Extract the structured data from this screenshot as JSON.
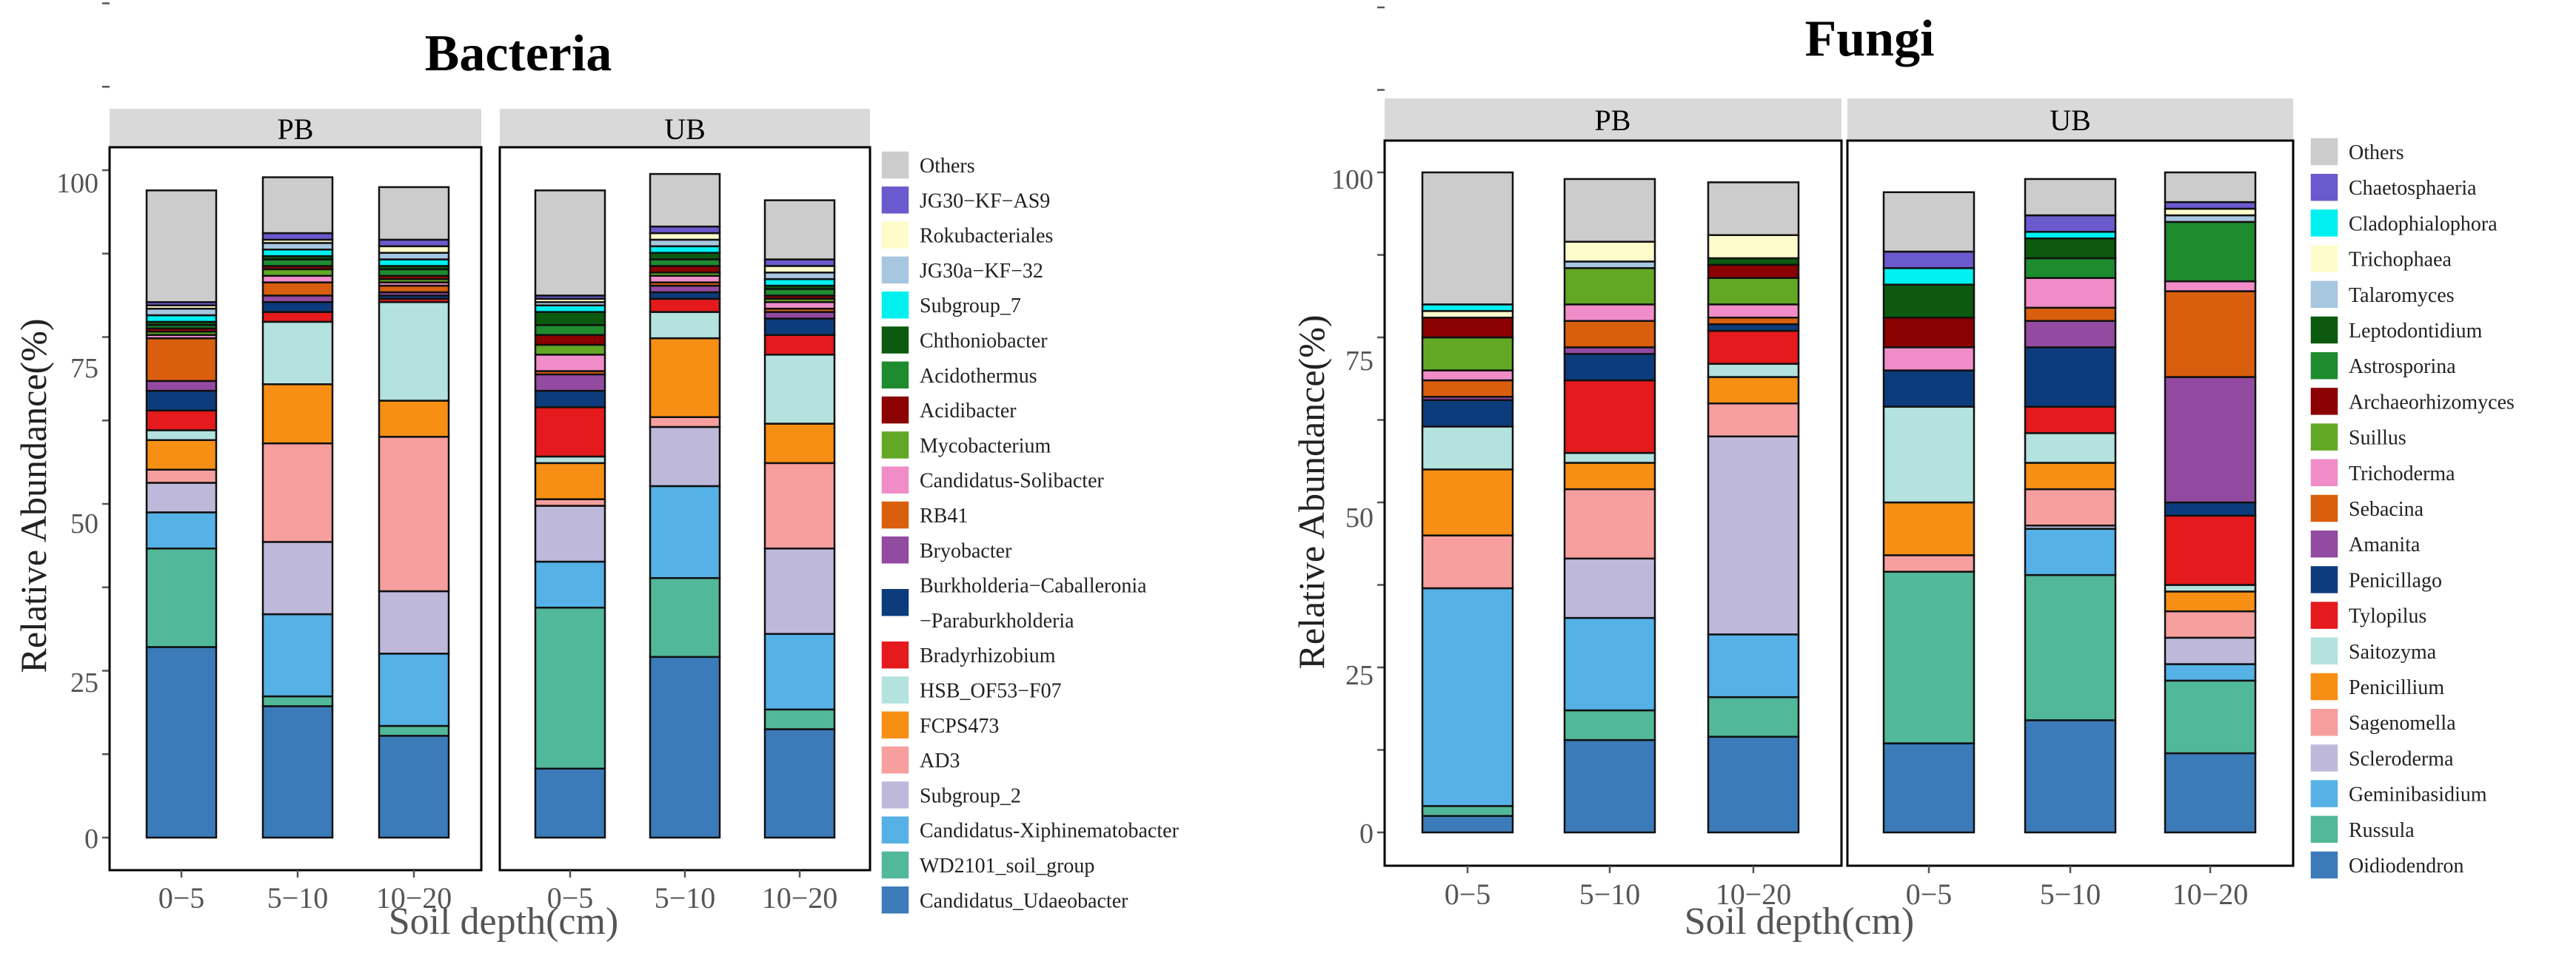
{
  "chart_data": [
    {
      "type": "bar",
      "stacked": true,
      "title": "Bacteria",
      "xlabel": "Soil depth(cm)",
      "ylabel": "Relative Abundance(%)",
      "ylim": [
        0,
        100
      ],
      "yticks": [
        "0",
        "25",
        "50",
        "75",
        "100"
      ],
      "categories": [
        "0−5",
        "5−10",
        "10−20"
      ],
      "panels": [
        "PB",
        "UB"
      ],
      "legend": [
        "Others",
        "JG30−KF−AS9",
        "Rokubacteriales",
        "JG30a−KF−32",
        "Subgroup_7",
        "Chthoniobacter",
        "Acidothermus",
        "Acidibacter",
        "Mycobacterium",
        "Candidatus-Solibacter",
        "RB41",
        "Bryobacter",
        "Burkholderia−Caballeronia\n−Paraburkholderia",
        "Bradyrhizobium",
        "HSB_OF53−F07",
        "FCPS473",
        "AD3",
        "Subgroup_2",
        "Candidatus-Xiphinematobacter",
        "WD2101_soil_group",
        "Candidatus_Udaeobacter"
      ],
      "stack_order": [
        "Candidatus_Udaeobacter",
        "WD2101_soil_group",
        "Candidatus-Xiphinematobacter",
        "Subgroup_2",
        "AD3",
        "FCPS473",
        "HSB_OF53−F07",
        "Bradyrhizobium",
        "Burkholderia−Caballeronia\n−Paraburkholderia",
        "Bryobacter",
        "RB41",
        "Candidatus-Solibacter",
        "Mycobacterium",
        "Acidibacter",
        "Acidothermus",
        "Chthoniobacter",
        "Subgroup_7",
        "JG30a−KF−32",
        "Rokubacteriales",
        "JG30−KF−AS9",
        "Others"
      ],
      "colors": [
        "#3B7BBA",
        "#52B89A",
        "#55B1E6",
        "#BEB9DB",
        "#F79F9E",
        "#F78F14",
        "#B3E2DF",
        "#E41A1C",
        "#0D3C7D",
        "#934AA1",
        "#D95F0E",
        "#F08DC8",
        "#63A825",
        "#8B0000",
        "#1E8B2F",
        "#0B5A0F",
        "#00F0F0",
        "#A7C6E0",
        "#FFFCCC",
        "#6A5ACD",
        "#CCCCCC"
      ],
      "values": {
        "PB": [
          [
            29,
            15,
            5.5,
            4.5,
            2,
            4.5,
            1.5,
            3,
            3,
            1.5,
            6.5,
            0.5,
            0.5,
            0.5,
            0.5,
            0.5,
            1,
            1,
            0.5,
            0.5,
            17
          ],
          [
            20,
            1.5,
            12.5,
            11,
            15,
            9,
            9.5,
            1.5,
            1.5,
            1,
            2,
            1,
            1,
            0.5,
            1,
            0.5,
            1,
            1,
            0.5,
            1,
            8.5
          ],
          [
            15.5,
            1.5,
            11,
            9.5,
            23.5,
            5.5,
            15,
            0.5,
            0.5,
            0.5,
            1,
            0.5,
            0.5,
            0.5,
            1,
            0.5,
            1,
            1,
            1,
            1,
            8
          ]
        ],
        "UB": [
          [
            10.5,
            24.5,
            7,
            8.5,
            1,
            5.5,
            1,
            7.5,
            2.5,
            2.5,
            0.5,
            2.5,
            1.5,
            1.5,
            1.5,
            2,
            1,
            0.5,
            0.5,
            0.5,
            16
          ],
          [
            27.5,
            12,
            14,
            9,
            1.5,
            12,
            4,
            2,
            1,
            1,
            0.5,
            1,
            0.5,
            1,
            1,
            1,
            1,
            1,
            1,
            1,
            8
          ],
          [
            16.5,
            3,
            11.5,
            13,
            13,
            6,
            10.5,
            3,
            2.5,
            1,
            0.5,
            1,
            0.5,
            0.5,
            1,
            0.5,
            1,
            1,
            1,
            1,
            9
          ]
        ]
      }
    },
    {
      "type": "bar",
      "stacked": true,
      "title": "Fungi",
      "xlabel": "Soil depth(cm)",
      "ylabel": "Relative Abundance(%)",
      "ylim": [
        0,
        100
      ],
      "yticks": [
        "0",
        "25",
        "50",
        "75",
        "100"
      ],
      "categories": [
        "0−5",
        "5−10",
        "10−20"
      ],
      "panels": [
        "PB",
        "UB"
      ],
      "legend": [
        "Others",
        "Chaetosphaeria",
        "Cladophialophora",
        "Trichophaea",
        "Talaromyces",
        "Leptodontidium",
        "Astrosporina",
        "Archaeorhizomyces",
        "Suillus",
        "Trichoderma",
        "Sebacina",
        "Amanita",
        "Penicillago",
        "Tylopilus",
        "Saitozyma",
        "Penicillium",
        "Sagenomella",
        "Scleroderma",
        "Geminibasidium",
        "Russula",
        "Oidiodendron"
      ],
      "stack_order": [
        "Oidiodendron",
        "Russula",
        "Geminibasidium",
        "Scleroderma",
        "Sagenomella",
        "Penicillium",
        "Saitozyma",
        "Tylopilus",
        "Penicillago",
        "Amanita",
        "Sebacina",
        "Trichoderma",
        "Suillus",
        "Archaeorhizomyces",
        "Astrosporina",
        "Leptodontidium",
        "Talaromyces",
        "Trichophaea",
        "Cladophialophora",
        "Chaetosphaeria",
        "Others"
      ],
      "colors": [
        "#3B7BBA",
        "#52B89A",
        "#55B1E6",
        "#BEB9DB",
        "#F79F9E",
        "#F78F14",
        "#B3E2DF",
        "#E41A1C",
        "#0D3C7D",
        "#934AA1",
        "#D95F0E",
        "#F08DC8",
        "#63A825",
        "#8B0000",
        "#1E8B2F",
        "#0B5A0F",
        "#A7C6E0",
        "#FFFCCC",
        "#00F0F0",
        "#6A5ACD",
        "#CCCCCC"
      ],
      "values": {
        "PB": [
          [
            2.5,
            1.5,
            33,
            0,
            8,
            10,
            6.5,
            0,
            4,
            0.5,
            2.5,
            1.5,
            5,
            3,
            0,
            0,
            0,
            1,
            1,
            0,
            20
          ],
          [
            14,
            4.5,
            14,
            9,
            10.5,
            4,
            1.5,
            11,
            4,
            1,
            4,
            2.5,
            5.5,
            0,
            0,
            0,
            1,
            3,
            0,
            0,
            9.5
          ],
          [
            14.5,
            6,
            9.5,
            30,
            5,
            4,
            2,
            5,
            1,
            0,
            1,
            2,
            4,
            2,
            0,
            1,
            0,
            3.5,
            0,
            0,
            8
          ]
        ],
        "UB": [
          [
            13.5,
            26,
            0,
            0,
            2.5,
            8,
            14.5,
            0,
            5.5,
            0,
            0,
            3.5,
            0,
            4.5,
            0,
            5,
            0,
            0,
            2.5,
            2.5,
            9
          ],
          [
            17,
            22,
            7,
            0.5,
            5.5,
            4,
            4.5,
            4,
            9,
            4,
            2,
            4.5,
            0,
            0,
            3,
            3,
            0,
            0,
            1,
            2.5,
            5.5
          ],
          [
            12,
            11,
            2.5,
            4,
            4,
            3,
            1,
            10.5,
            2,
            19,
            13,
            1.5,
            0,
            0,
            9,
            0,
            1,
            1,
            0,
            1,
            4.5
          ]
        ]
      }
    }
  ]
}
